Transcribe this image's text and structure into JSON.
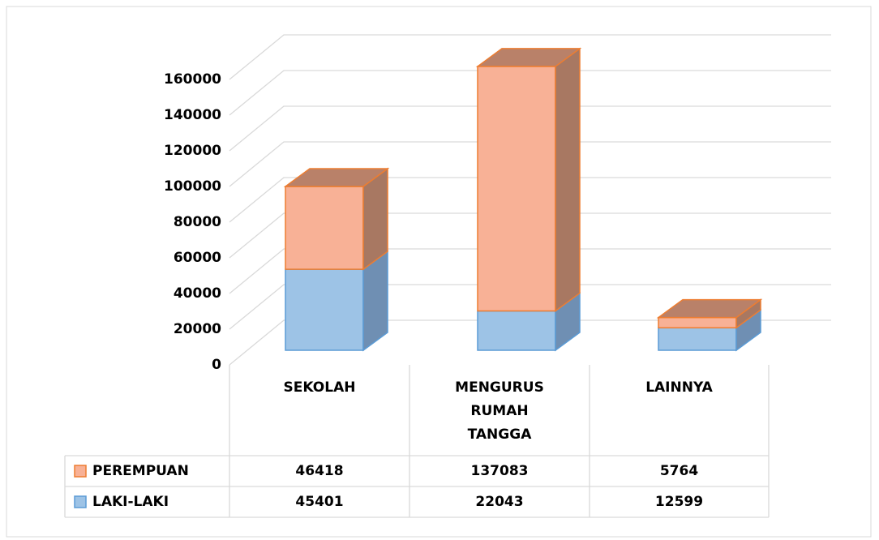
{
  "chart_data": {
    "type": "bar3d_stacked",
    "categories": [
      "SEKOLAH",
      "MENGURUS RUMAH TANGGA",
      "LAINNYA"
    ],
    "series": [
      {
        "name": "LAKI-LAKI",
        "color": "#9dc3e6",
        "values": [
          45401,
          22043,
          12599
        ]
      },
      {
        "name": "PEREMPUAN",
        "color": "#f8b196",
        "values": [
          46418,
          137083,
          5764
        ]
      }
    ],
    "ylim": [
      0,
      160000
    ],
    "yticks": [
      0,
      20000,
      40000,
      60000,
      80000,
      100000,
      120000,
      140000,
      160000
    ],
    "grid": true
  }
}
